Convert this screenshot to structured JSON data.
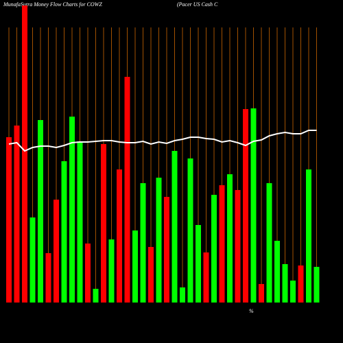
{
  "chart_data": {
    "type": "bar",
    "title": "MunafaSutra  Money Flow  Charts for COWZ",
    "subtitle": "(Pacer US Cash C",
    "annotation": "%",
    "ylim": [
      0,
      441
    ],
    "grid": true,
    "grid_color": "#cc6600",
    "background": "#000000",
    "series": [
      {
        "values": [
          241,
          258,
          433,
          124,
          266,
          72,
          150,
          206,
          271,
          235,
          86,
          20,
          231,
          92,
          194,
          329,
          105,
          174,
          81,
          182,
          154,
          221,
          22,
          210,
          113,
          73,
          157,
          171,
          187,
          164,
          282,
          283,
          27,
          174,
          90,
          56,
          32,
          54,
          194,
          52
        ],
        "colors": [
          "#ff0000",
          "#ff0000",
          "#ff0000",
          "#00ff00",
          "#00ff00",
          "#ff0000",
          "#ff0000",
          "#00ff00",
          "#00ff00",
          "#00ff00",
          "#ff0000",
          "#00ff00",
          "#ff0000",
          "#00ff00",
          "#ff0000",
          "#ff0000",
          "#00ff00",
          "#00ff00",
          "#ff0000",
          "#00ff00",
          "#ff0000",
          "#00ff00",
          "#00ff00",
          "#00ff00",
          "#00ff00",
          "#ff0000",
          "#00ff00",
          "#ff0000",
          "#00ff00",
          "#ff0000",
          "#ff0000",
          "#00ff00",
          "#ff0000",
          "#00ff00",
          "#00ff00",
          "#00ff00",
          "#00ff00",
          "#ff0000",
          "#00ff00",
          "#00ff00"
        ]
      },
      {
        "type": "line",
        "color": "#ffffff",
        "values": [
          231,
          233,
          221,
          226,
          228,
          228,
          226,
          229,
          233,
          234,
          234,
          235,
          236,
          236,
          234,
          233,
          233,
          235,
          231,
          234,
          232,
          236,
          238,
          241,
          241,
          239,
          238,
          234,
          236,
          233,
          229,
          235,
          237,
          243,
          246,
          248,
          246,
          246,
          251,
          251
        ]
      }
    ]
  }
}
